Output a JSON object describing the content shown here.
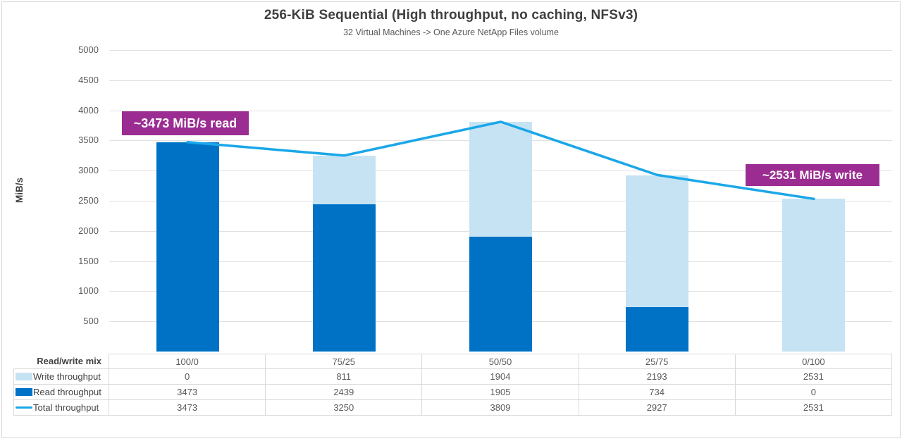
{
  "chart": {
    "title": "256-KiB Sequential (High throughput, no caching, NFSv3)",
    "subtitle": "32 Virtual Machines -> One Azure NetApp Files volume",
    "y_axis_label": "MiB/s"
  },
  "chart_data": {
    "type": "bar+line (stacked bars with total line overlay)",
    "categories": [
      "100/0",
      "75/25",
      "50/50",
      "25/75",
      "0/100"
    ],
    "category_axis_title": "Read/write mix",
    "series": [
      {
        "name": "Write throughput",
        "kind": "bar-stacked",
        "color": "#C6E3F4",
        "values": [
          0,
          811,
          1904,
          2193,
          2531
        ]
      },
      {
        "name": "Read throughput",
        "kind": "bar-stacked",
        "color": "#0072C6",
        "values": [
          3473,
          2439,
          1905,
          734,
          0
        ]
      },
      {
        "name": "Total throughput",
        "kind": "line",
        "color": "#1AA7E8",
        "values": [
          3473,
          3250,
          3809,
          2927,
          2531
        ]
      }
    ],
    "title": "256-KiB Sequential (High throughput, no caching, NFSv3)",
    "subtitle": "32 Virtual Machines -> One Azure NetApp Files volume",
    "xlabel": "Read/write mix",
    "ylabel": "MiB/s",
    "ylim": [
      0,
      5000
    ],
    "ytick_step": 500,
    "grid": true,
    "legend_position": "attached-data-table-left"
  },
  "annotations": [
    {
      "text": "~3473 MiB/s read",
      "bg_color": "#9B2D92",
      "text_color": "#FFFFFF"
    },
    {
      "text": "~2531 MiB/s write",
      "bg_color": "#9B2D92",
      "text_color": "#FFFFFF"
    }
  ],
  "data_table": {
    "corner_label": "Read/write mix",
    "column_headers": [
      "100/0",
      "75/25",
      "50/50",
      "25/75",
      "0/100"
    ],
    "rows": [
      {
        "label": "Write throughput",
        "swatch": "rect",
        "swatch_color": "#C6E3F4",
        "values": [
          "0",
          "811",
          "1904",
          "2193",
          "2531"
        ]
      },
      {
        "label": "Read throughput",
        "swatch": "rect",
        "swatch_color": "#0072C6",
        "values": [
          "3473",
          "2439",
          "1905",
          "734",
          "0"
        ]
      },
      {
        "label": "Total throughput",
        "swatch": "line",
        "swatch_color": "#1AA7E8",
        "values": [
          "3473",
          "3250",
          "3809",
          "2927",
          "2531"
        ]
      }
    ]
  }
}
